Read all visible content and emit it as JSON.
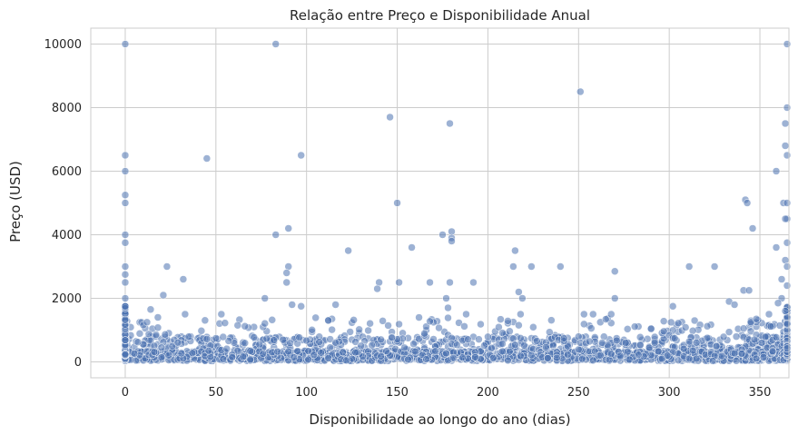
{
  "chart_data": {
    "type": "scatter",
    "title": "Relação entre Preço e Disponibilidade Anual",
    "xlabel": "Disponibilidade ao longo do ano (dias)",
    "ylabel": "Preço (USD)",
    "xlim": [
      -19,
      366
    ],
    "ylim": [
      -500,
      10500
    ],
    "xticks": [
      0,
      50,
      100,
      150,
      200,
      250,
      300,
      350
    ],
    "yticks": [
      0,
      2000,
      4000,
      6000,
      8000,
      10000
    ],
    "grid": true,
    "point_color": "#4c72b0",
    "notable_points": [
      {
        "x": 0,
        "y": 10000
      },
      {
        "x": 83,
        "y": 10000
      },
      {
        "x": 365,
        "y": 10000
      },
      {
        "x": 251,
        "y": 8500
      },
      {
        "x": 146,
        "y": 7700
      },
      {
        "x": 179,
        "y": 7500
      },
      {
        "x": 365,
        "y": 8000
      },
      {
        "x": 364,
        "y": 7500
      },
      {
        "x": 364,
        "y": 6800
      },
      {
        "x": 97,
        "y": 6500
      },
      {
        "x": 45,
        "y": 6400
      },
      {
        "x": 0,
        "y": 6500
      },
      {
        "x": 0,
        "y": 6000
      },
      {
        "x": 359,
        "y": 6000
      },
      {
        "x": 365,
        "y": 6500
      },
      {
        "x": 0,
        "y": 5250
      },
      {
        "x": 0,
        "y": 5000
      },
      {
        "x": 150,
        "y": 5000
      },
      {
        "x": 342,
        "y": 5100
      },
      {
        "x": 343,
        "y": 5000
      },
      {
        "x": 363,
        "y": 5000
      },
      {
        "x": 365,
        "y": 5000
      },
      {
        "x": 365,
        "y": 4500
      },
      {
        "x": 364,
        "y": 4500
      },
      {
        "x": 90,
        "y": 4200
      },
      {
        "x": 346,
        "y": 4200
      },
      {
        "x": 180,
        "y": 4100
      },
      {
        "x": 180,
        "y": 3900
      },
      {
        "x": 180,
        "y": 3800
      },
      {
        "x": 175,
        "y": 4000
      },
      {
        "x": 83,
        "y": 4000
      },
      {
        "x": 0,
        "y": 4000
      },
      {
        "x": 0,
        "y": 3750
      },
      {
        "x": 365,
        "y": 3750
      },
      {
        "x": 158,
        "y": 3600
      },
      {
        "x": 359,
        "y": 3600
      },
      {
        "x": 123,
        "y": 3500
      },
      {
        "x": 215,
        "y": 3500
      },
      {
        "x": 214,
        "y": 3000
      },
      {
        "x": 224,
        "y": 3000
      },
      {
        "x": 240,
        "y": 3000
      },
      {
        "x": 311,
        "y": 3000
      },
      {
        "x": 325,
        "y": 3000
      },
      {
        "x": 23,
        "y": 3000
      },
      {
        "x": 90,
        "y": 3000
      },
      {
        "x": 270,
        "y": 2850
      },
      {
        "x": 89,
        "y": 2800
      },
      {
        "x": 32,
        "y": 2600
      },
      {
        "x": 364,
        "y": 3200
      },
      {
        "x": 365,
        "y": 3000
      },
      {
        "x": 0,
        "y": 3000
      },
      {
        "x": 0,
        "y": 2750
      },
      {
        "x": 0,
        "y": 2500
      },
      {
        "x": 89,
        "y": 2500
      },
      {
        "x": 140,
        "y": 2500
      },
      {
        "x": 151,
        "y": 2500
      },
      {
        "x": 168,
        "y": 2500
      },
      {
        "x": 179,
        "y": 2500
      },
      {
        "x": 192,
        "y": 2500
      },
      {
        "x": 139,
        "y": 2300
      },
      {
        "x": 341,
        "y": 2250
      },
      {
        "x": 344,
        "y": 2250
      },
      {
        "x": 362,
        "y": 2600
      },
      {
        "x": 365,
        "y": 2400
      },
      {
        "x": 217,
        "y": 2200
      },
      {
        "x": 21,
        "y": 2100
      },
      {
        "x": 219,
        "y": 2000
      },
      {
        "x": 270,
        "y": 2000
      },
      {
        "x": 77,
        "y": 2000
      },
      {
        "x": 0,
        "y": 2000
      },
      {
        "x": 362,
        "y": 2000
      },
      {
        "x": 333,
        "y": 1900
      },
      {
        "x": 177,
        "y": 2000
      },
      {
        "x": 116,
        "y": 1800
      },
      {
        "x": 178,
        "y": 1700
      },
      {
        "x": 97,
        "y": 1750
      },
      {
        "x": 92,
        "y": 1800
      },
      {
        "x": 302,
        "y": 1750
      },
      {
        "x": 336,
        "y": 1800
      },
      {
        "x": 360,
        "y": 1850
      },
      {
        "x": 14,
        "y": 1650
      },
      {
        "x": 253,
        "y": 1500
      },
      {
        "x": 258,
        "y": 1500
      },
      {
        "x": 268,
        "y": 1500
      },
      {
        "x": 188,
        "y": 1500
      },
      {
        "x": 218,
        "y": 1500
      },
      {
        "x": 53,
        "y": 1500
      },
      {
        "x": 33,
        "y": 1500
      },
      {
        "x": 18,
        "y": 1400
      },
      {
        "x": 345,
        "y": 1250
      },
      {
        "x": 348,
        "y": 1350
      },
      {
        "x": 355,
        "y": 1500
      },
      {
        "x": 364,
        "y": 1600
      }
    ]
  }
}
